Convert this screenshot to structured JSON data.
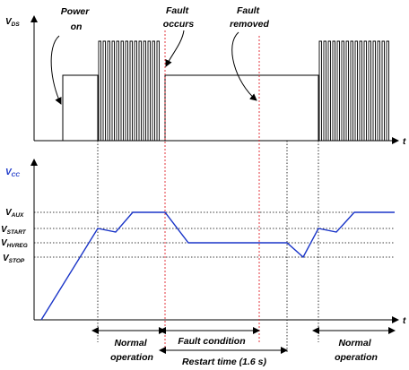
{
  "colors": {
    "vcc_trace": "#1a35c8",
    "fault_marker": "#e0202a",
    "vcc_label": "#1a35c8",
    "axes": "#000000"
  },
  "top_plot": {
    "y_axis": {
      "main": "V",
      "sub": "DS"
    },
    "x_axis": "t",
    "annotations": {
      "power_on": [
        "Power",
        "on"
      ],
      "fault_occurs": [
        "Fault",
        "occurs"
      ],
      "fault_removed": [
        "Fault",
        "removed"
      ]
    }
  },
  "bottom_plot": {
    "y_axis": {
      "main": "V",
      "sub": "CC"
    },
    "x_axis": "t",
    "levels": [
      {
        "main": "V",
        "sub": "AUX"
      },
      {
        "main": "V",
        "sub": "START"
      },
      {
        "main": "V",
        "sub": "HVREG"
      },
      {
        "main": "V",
        "sub": "STOP"
      }
    ]
  },
  "intervals": {
    "normal_1": [
      "Normal",
      "operation"
    ],
    "fault_condition": "Fault condition",
    "restart_time": "Restart time (1.6 s)",
    "normal_2": [
      "Normal",
      "operation"
    ]
  }
}
